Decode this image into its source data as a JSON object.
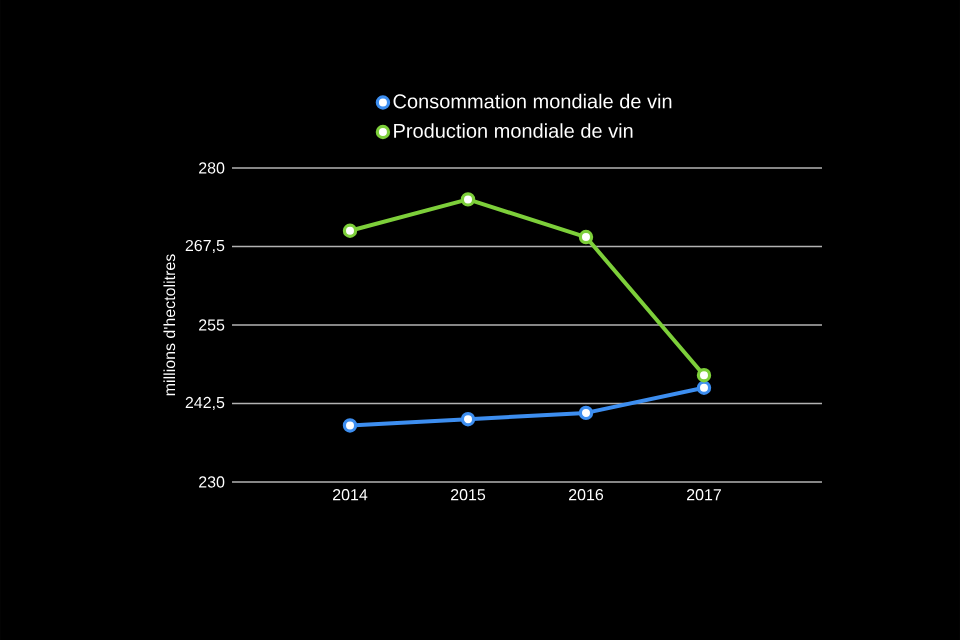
{
  "chart_data": {
    "type": "line",
    "ylabel": "millions d'hectolitres",
    "categories": [
      "2014",
      "2015",
      "2016",
      "2017"
    ],
    "series": [
      {
        "name": "Consommation mondiale de vin",
        "color": "#3d8ef0",
        "values": [
          239,
          240,
          241,
          245
        ]
      },
      {
        "name": "Production mondiale de vin",
        "color": "#7dcf3a",
        "values": [
          270,
          275,
          269,
          247
        ]
      }
    ],
    "ylim": [
      230,
      280
    ],
    "yticks": [
      230,
      {
        "value": 242.5,
        "label": "242,5"
      },
      255,
      {
        "value": 267.5,
        "label": "267,5"
      },
      280
    ],
    "grid": "y",
    "legend": "top",
    "marker": "circle",
    "line_style": "solid"
  }
}
